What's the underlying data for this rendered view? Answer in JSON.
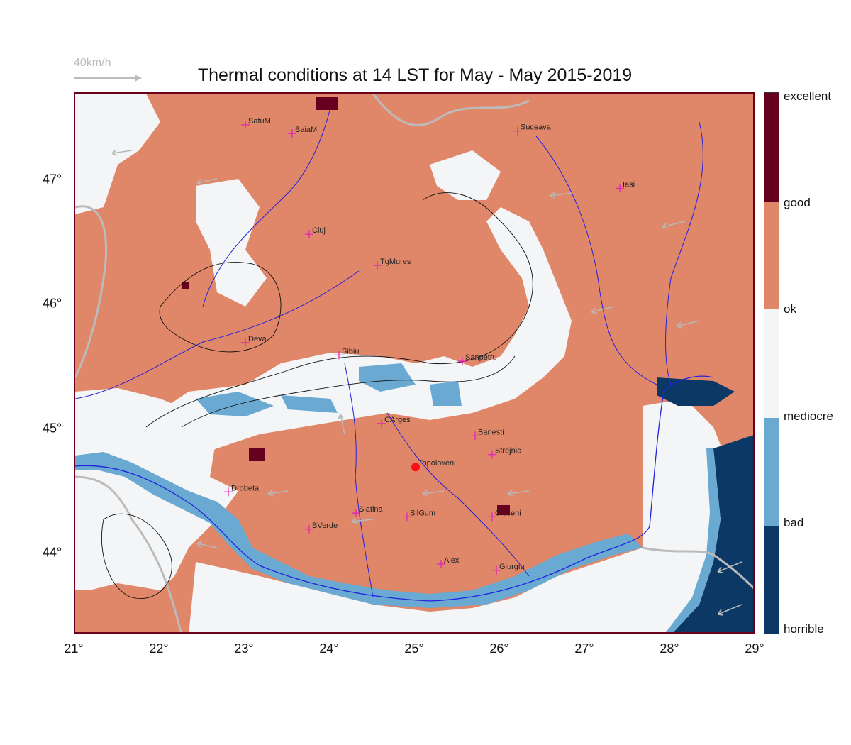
{
  "title": "Thermal conditions at 14 LST for May - May  2015-2019",
  "wind_key": "40km/h",
  "x_ticks": [
    "21°",
    "22°",
    "23°",
    "24°",
    "25°",
    "26°",
    "27°",
    "28°",
    "29°"
  ],
  "y_ticks": [
    "47°",
    "46°",
    "45°",
    "44°"
  ],
  "legend": {
    "labels": [
      "excellent",
      "good",
      "ok",
      "mediocre",
      "bad",
      "horrible"
    ],
    "colors": [
      "#67001f",
      "#e08769",
      "#f4f5f7",
      "#69a9d2",
      "#0c3866"
    ]
  },
  "cities": [
    {
      "name": "SatuM",
      "lon": 23.0,
      "lat": 47.45
    },
    {
      "name": "BaiaM",
      "lon": 23.55,
      "lat": 47.38
    },
    {
      "name": "Suceava",
      "lon": 26.2,
      "lat": 47.4
    },
    {
      "name": "Iasi",
      "lon": 27.4,
      "lat": 46.94
    },
    {
      "name": "Cluj",
      "lon": 23.75,
      "lat": 46.57
    },
    {
      "name": "TgMures",
      "lon": 24.55,
      "lat": 46.32
    },
    {
      "name": "Deva",
      "lon": 23.0,
      "lat": 45.7
    },
    {
      "name": "Sibiu",
      "lon": 24.1,
      "lat": 45.6
    },
    {
      "name": "Sanpetru",
      "lon": 25.55,
      "lat": 45.55
    },
    {
      "name": "CArges",
      "lon": 24.6,
      "lat": 45.05
    },
    {
      "name": "Banesti",
      "lon": 25.7,
      "lat": 44.95
    },
    {
      "name": "Strejnic",
      "lon": 25.9,
      "lat": 44.8
    },
    {
      "name": "Topoloveni",
      "lon": 25.0,
      "lat": 44.7,
      "highlight": true
    },
    {
      "name": "Drobeta",
      "lon": 22.8,
      "lat": 44.5
    },
    {
      "name": "Slatina",
      "lon": 24.3,
      "lat": 44.33
    },
    {
      "name": "SilGum",
      "lon": 24.9,
      "lat": 44.3
    },
    {
      "name": "Cioceni",
      "lon": 25.9,
      "lat": 44.3
    },
    {
      "name": "BVerde",
      "lon": 23.75,
      "lat": 44.2
    },
    {
      "name": "Alex",
      "lon": 25.3,
      "lat": 43.92
    },
    {
      "name": "Giurgiu",
      "lon": 25.95,
      "lat": 43.87
    }
  ]
}
